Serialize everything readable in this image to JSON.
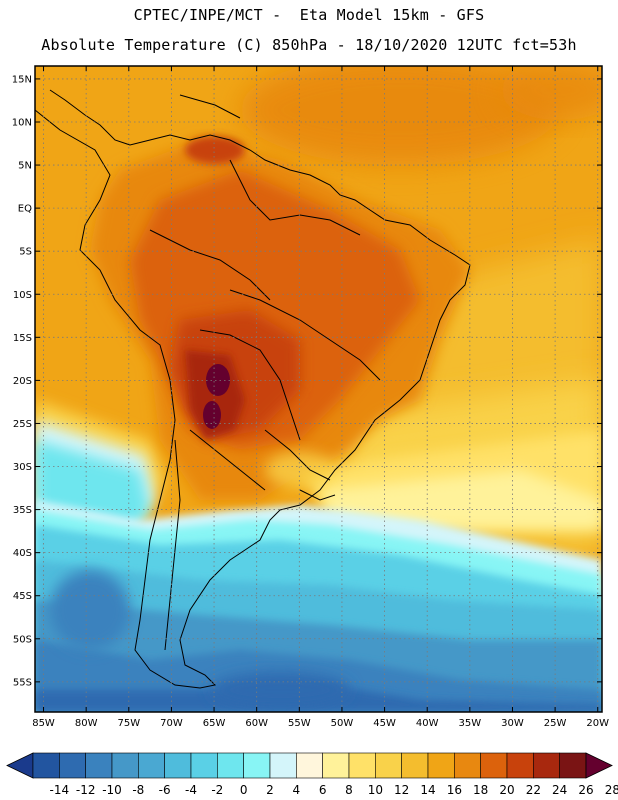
{
  "header": {
    "line1": "CPTEC/INPE/MCT -  Eta Model 15km - GFS",
    "line2": "Absolute Temperature (C) 850hPa - 18/10/2020 12UTC fct=53h"
  },
  "map": {
    "lat_labels": [
      "15N",
      "10N",
      "5N",
      "EQ",
      "5S",
      "10S",
      "15S",
      "20S",
      "25S",
      "30S",
      "35S",
      "40S",
      "45S",
      "50S",
      "55S"
    ],
    "lon_labels": [
      "85W",
      "80W",
      "75W",
      "70W",
      "65W",
      "60W",
      "55W",
      "50W",
      "45W",
      "40W",
      "35W",
      "30W",
      "25W",
      "20W"
    ],
    "grid": "dotted"
  },
  "colorbar": {
    "labels": [
      "-14",
      "-12",
      "-10",
      "-8",
      "-6",
      "-4",
      "-2",
      "0",
      "2",
      "4",
      "6",
      "8",
      "10",
      "12",
      "14",
      "16",
      "18",
      "20",
      "22",
      "24",
      "26",
      "28"
    ],
    "colors": [
      "#1a3a8c",
      "#2255a0",
      "#2e6bb0",
      "#3a82be",
      "#4598c8",
      "#4aa8d2",
      "#4fbcdc",
      "#5ad0e6",
      "#6ee6ee",
      "#88f5f5",
      "#d4f5fa",
      "#fff6dc",
      "#fff29a",
      "#ffe168",
      "#f9d24a",
      "#f4bd2e",
      "#f0a516",
      "#e88810",
      "#dc620c",
      "#c8420c",
      "#a8280e",
      "#7a1414",
      "#64002e"
    ]
  }
}
